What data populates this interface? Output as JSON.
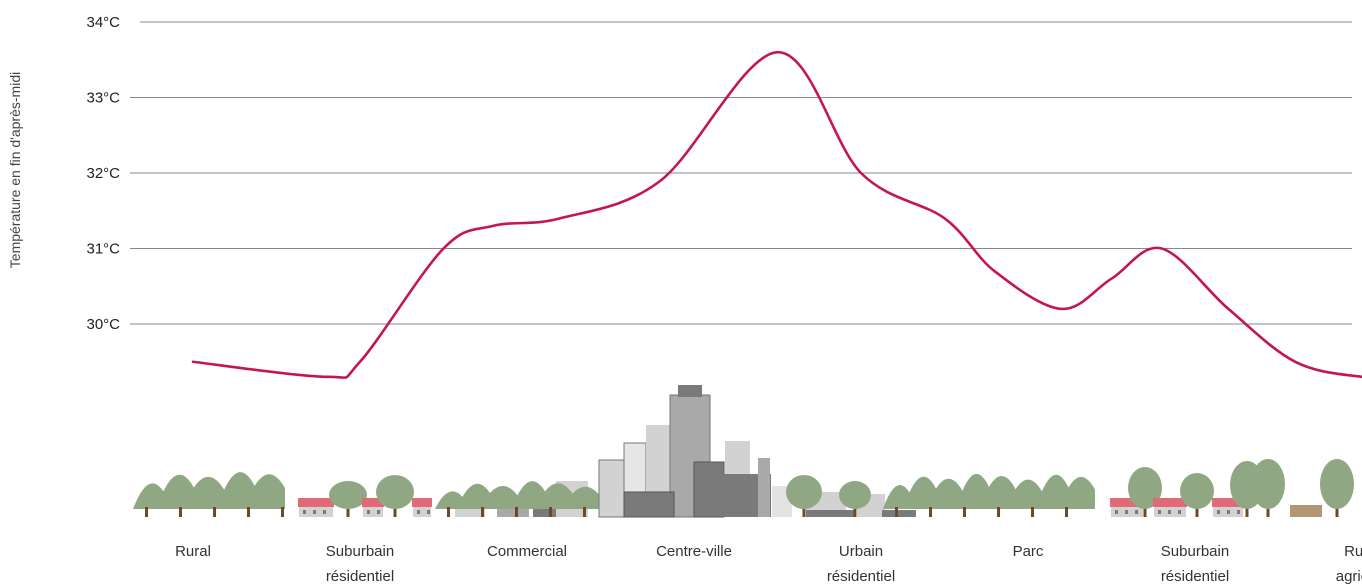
{
  "chart_data": {
    "type": "line",
    "title": "",
    "xlabel": "",
    "ylabel": "Température en fin d'après-midi",
    "ylim": [
      29.0,
      34.0
    ],
    "yticks": [
      {
        "value": 34,
        "label": "34°C"
      },
      {
        "value": 33,
        "label": "33°C"
      },
      {
        "value": 32,
        "label": "32°C"
      },
      {
        "value": 31,
        "label": "31°C"
      },
      {
        "value": 30,
        "label": "30°C"
      }
    ],
    "grid": true,
    "line_color": "#c4174f",
    "categories": [
      {
        "line1": "Rural",
        "line2": ""
      },
      {
        "line1": "Suburbain",
        "line2": "résidentiel"
      },
      {
        "line1": "Commercial",
        "line2": ""
      },
      {
        "line1": "Centre-ville",
        "line2": ""
      },
      {
        "line1": "Urbain",
        "line2": "résidentiel"
      },
      {
        "line1": "Parc",
        "line2": ""
      },
      {
        "line1": "Suburbain",
        "line2": "résidentiel"
      },
      {
        "line1": "Rural",
        "line2": "agricole"
      }
    ],
    "series": [
      {
        "values": [
          [
            0.0,
            29.5
          ],
          [
            0.8,
            29.3
          ],
          [
            1.0,
            29.5
          ],
          [
            1.5,
            31.0
          ],
          [
            1.8,
            31.3
          ],
          [
            2.2,
            31.4
          ],
          [
            2.8,
            31.9
          ],
          [
            3.5,
            33.6
          ],
          [
            4.0,
            32.0
          ],
          [
            4.5,
            31.4
          ],
          [
            4.8,
            30.7
          ],
          [
            5.2,
            30.2
          ],
          [
            5.5,
            30.6
          ],
          [
            5.8,
            31.0
          ],
          [
            6.2,
            30.2
          ],
          [
            6.6,
            29.5
          ],
          [
            7.0,
            29.3
          ],
          [
            7.3,
            29.3
          ]
        ]
      }
    ],
    "colors": {
      "grid": "#888888",
      "tree": "#8fa883",
      "trunk": "#6b4a2a",
      "roof": "#e06a78",
      "building_light": "#d2d2d2",
      "building_mid": "#a9a9a9",
      "building_dark": "#7a7a7a",
      "farm": "#b39674"
    }
  }
}
